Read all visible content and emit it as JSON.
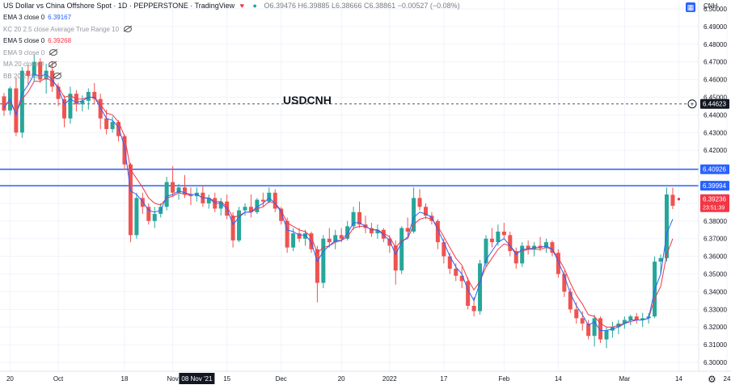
{
  "header": {
    "symbol_line": "US Dollar vs China Offshore Spot · 1D · PEPPERSTONE · TradingView",
    "ohlc": "O6.39476 H6.39885 L6.38666 C6.38861 −0.00527 (−0.08%)"
  },
  "indicators": [
    {
      "label": "EMA 3 close 0",
      "value": "6.39167",
      "color": "#2962ff",
      "faded": false
    },
    {
      "label": "KC 20 2.5 close Average True Range 10",
      "value": "",
      "color": "#787b86",
      "faded": true
    },
    {
      "label": "EMA 5 close 0",
      "value": "6.39268",
      "color": "#f23645",
      "faded": false
    },
    {
      "label": "EMA 9 close 0",
      "value": "",
      "color": "#787b86",
      "faded": true
    },
    {
      "label": "MA 20 close 0",
      "value": "",
      "color": "#787b86",
      "faded": true
    },
    {
      "label": "BB 20 2 close 0",
      "value": "",
      "color": "#787b86",
      "faded": true
    }
  ],
  "currency_label": "CNH",
  "chart_data": {
    "type": "candlestick",
    "title": "USDCNH",
    "ylim": [
      6.295,
      6.505
    ],
    "y_ticks": [
      "6.50000",
      "6.49000",
      "6.48000",
      "6.47000",
      "6.46000",
      "6.45000",
      "6.44000",
      "6.43000",
      "6.42000",
      "6.41000",
      "6.40000",
      "6.39000",
      "6.38000",
      "6.37000",
      "6.36000",
      "6.35000",
      "6.34000",
      "6.33000",
      "6.32000",
      "6.31000",
      "6.30000"
    ],
    "x_labels": [
      {
        "label": "20",
        "index": 1
      },
      {
        "label": "Oct",
        "index": 9
      },
      {
        "label": "18",
        "index": 20
      },
      {
        "label": "Nov",
        "index": 28
      },
      {
        "label": "08 Nov '21",
        "index": 32,
        "highlight": true
      },
      {
        "label": "15",
        "index": 37
      },
      {
        "label": "Dec",
        "index": 46
      },
      {
        "label": "20",
        "index": 56
      },
      {
        "label": "2022",
        "index": 64
      },
      {
        "label": "17",
        "index": 73
      },
      {
        "label": "Feb",
        "index": 83
      },
      {
        "label": "14",
        "index": 92
      },
      {
        "label": "Mar",
        "index": 103
      },
      {
        "label": "14",
        "index": 112
      },
      {
        "label": "24",
        "index": 120
      }
    ],
    "horizontal_lines": [
      {
        "value": 6.44623,
        "label": "6.44623",
        "style": "dashed",
        "color": "#555555",
        "badge": "#131722"
      },
      {
        "value": 6.40926,
        "label": "6.40926",
        "style": "solid",
        "color": "#2962ff",
        "badge": "#2962ff"
      },
      {
        "value": 6.39994,
        "label": "6.39994",
        "style": "solid",
        "color": "#2962ff",
        "badge": "#2962ff"
      }
    ],
    "last_price": {
      "value": 6.39236,
      "label": "6.39236",
      "countdown": "23:51:39",
      "color": "#f23645"
    },
    "candles": [
      [
        6.4505,
        6.4524,
        6.4395,
        6.4425
      ],
      [
        6.4425,
        6.456,
        6.44,
        6.455
      ],
      [
        6.455,
        6.461,
        6.428,
        6.43
      ],
      [
        6.43,
        6.467,
        6.427,
        6.465
      ],
      [
        6.465,
        6.468,
        6.457,
        6.462
      ],
      [
        6.462,
        6.474,
        6.459,
        6.47
      ],
      [
        6.47,
        6.472,
        6.458,
        6.46
      ],
      [
        6.46,
        6.469,
        6.452,
        6.465
      ],
      [
        6.465,
        6.47,
        6.453,
        6.456
      ],
      [
        6.456,
        6.458,
        6.445,
        6.449
      ],
      [
        6.449,
        6.451,
        6.433,
        6.438
      ],
      [
        6.438,
        6.456,
        6.435,
        6.452
      ],
      [
        6.452,
        6.454,
        6.442,
        6.446
      ],
      [
        6.446,
        6.451,
        6.442,
        6.448
      ],
      [
        6.448,
        6.455,
        6.443,
        6.453
      ],
      [
        6.453,
        6.458,
        6.446,
        6.449
      ],
      [
        6.449,
        6.452,
        6.432,
        6.438
      ],
      [
        6.438,
        6.443,
        6.429,
        6.432
      ],
      [
        6.432,
        6.439,
        6.43,
        6.436
      ],
      [
        6.436,
        6.437,
        6.425,
        6.428
      ],
      [
        6.428,
        6.429,
        6.409,
        6.412
      ],
      [
        6.412,
        6.413,
        6.368,
        6.372
      ],
      [
        6.372,
        6.396,
        6.37,
        6.393
      ],
      [
        6.393,
        6.396,
        6.384,
        6.388
      ],
      [
        6.388,
        6.39,
        6.378,
        6.38
      ],
      [
        6.38,
        6.388,
        6.376,
        6.384
      ],
      [
        6.384,
        6.39,
        6.382,
        6.388
      ],
      [
        6.388,
        6.405,
        6.386,
        6.402
      ],
      [
        6.402,
        6.411,
        6.394,
        6.396
      ],
      [
        6.396,
        6.401,
        6.392,
        6.399
      ],
      [
        6.399,
        6.406,
        6.393,
        6.395
      ],
      [
        6.395,
        6.399,
        6.389,
        6.394
      ],
      [
        6.394,
        6.399,
        6.391,
        6.396
      ],
      [
        6.396,
        6.4,
        6.388,
        6.39
      ],
      [
        6.39,
        6.395,
        6.387,
        6.393
      ],
      [
        6.393,
        6.396,
        6.385,
        6.387
      ],
      [
        6.387,
        6.393,
        6.383,
        6.391
      ],
      [
        6.391,
        6.395,
        6.381,
        6.383
      ],
      [
        6.383,
        6.385,
        6.365,
        6.369
      ],
      [
        6.369,
        6.388,
        6.368,
        6.386
      ],
      [
        6.386,
        6.39,
        6.383,
        6.388
      ],
      [
        6.388,
        6.395,
        6.382,
        6.385
      ],
      [
        6.385,
        6.393,
        6.384,
        6.392
      ],
      [
        6.392,
        6.396,
        6.388,
        6.391
      ],
      [
        6.391,
        6.399,
        6.39,
        6.396
      ],
      [
        6.396,
        6.398,
        6.385,
        6.387
      ],
      [
        6.387,
        6.388,
        6.378,
        6.38
      ],
      [
        6.38,
        6.382,
        6.362,
        6.365
      ],
      [
        6.365,
        6.376,
        6.363,
        6.373
      ],
      [
        6.373,
        6.376,
        6.368,
        6.37
      ],
      [
        6.37,
        6.375,
        6.366,
        6.373
      ],
      [
        6.373,
        6.374,
        6.362,
        6.364
      ],
      [
        6.364,
        6.366,
        6.334,
        6.345
      ],
      [
        6.345,
        6.372,
        6.342,
        6.37
      ],
      [
        6.37,
        6.376,
        6.365,
        6.368
      ],
      [
        6.368,
        6.375,
        6.364,
        6.372
      ],
      [
        6.372,
        6.376,
        6.368,
        6.37
      ],
      [
        6.37,
        6.38,
        6.369,
        6.377
      ],
      [
        6.377,
        6.388,
        6.375,
        6.385
      ],
      [
        6.385,
        6.391,
        6.376,
        6.378
      ],
      [
        6.378,
        6.383,
        6.373,
        6.376
      ],
      [
        6.376,
        6.379,
        6.371,
        6.373
      ],
      [
        6.373,
        6.378,
        6.37,
        6.375
      ],
      [
        6.375,
        6.376,
        6.368,
        6.37
      ],
      [
        6.37,
        6.372,
        6.362,
        6.366
      ],
      [
        6.366,
        6.369,
        6.344,
        6.352
      ],
      [
        6.352,
        6.377,
        6.35,
        6.376
      ],
      [
        6.376,
        6.382,
        6.372,
        6.374
      ],
      [
        6.374,
        6.399,
        6.373,
        6.393
      ],
      [
        6.393,
        6.398,
        6.386,
        6.388
      ],
      [
        6.388,
        6.39,
        6.381,
        6.383
      ],
      [
        6.383,
        6.385,
        6.378,
        6.38
      ],
      [
        6.38,
        6.381,
        6.364,
        6.368
      ],
      [
        6.368,
        6.37,
        6.356,
        6.36
      ],
      [
        6.36,
        6.362,
        6.35,
        6.353
      ],
      [
        6.353,
        6.356,
        6.346,
        6.349
      ],
      [
        6.349,
        6.354,
        6.342,
        6.346
      ],
      [
        6.346,
        6.348,
        6.33,
        6.332
      ],
      [
        6.332,
        6.337,
        6.326,
        6.329
      ],
      [
        6.329,
        6.358,
        6.327,
        6.356
      ],
      [
        6.356,
        6.372,
        6.354,
        6.37
      ],
      [
        6.37,
        6.376,
        6.365,
        6.368
      ],
      [
        6.368,
        6.378,
        6.366,
        6.374
      ],
      [
        6.374,
        6.379,
        6.37,
        6.372
      ],
      [
        6.372,
        6.374,
        6.36,
        6.363
      ],
      [
        6.363,
        6.365,
        6.353,
        6.356
      ],
      [
        6.356,
        6.368,
        6.354,
        6.366
      ],
      [
        6.366,
        6.369,
        6.361,
        6.364
      ],
      [
        6.364,
        6.368,
        6.36,
        6.366
      ],
      [
        6.366,
        6.371,
        6.363,
        6.365
      ],
      [
        6.365,
        6.37,
        6.362,
        6.368
      ],
      [
        6.368,
        6.369,
        6.36,
        6.362
      ],
      [
        6.362,
        6.364,
        6.348,
        6.35
      ],
      [
        6.35,
        6.352,
        6.337,
        6.34
      ],
      [
        6.34,
        6.342,
        6.328,
        6.33
      ],
      [
        6.33,
        6.334,
        6.322,
        6.325
      ],
      [
        6.325,
        6.329,
        6.318,
        6.322
      ],
      [
        6.322,
        6.324,
        6.313,
        6.315
      ],
      [
        6.315,
        6.327,
        6.309,
        6.325
      ],
      [
        6.325,
        6.326,
        6.311,
        6.313
      ],
      [
        6.313,
        6.32,
        6.308,
        6.318
      ],
      [
        6.318,
        6.323,
        6.314,
        6.32
      ],
      [
        6.32,
        6.324,
        6.316,
        6.322
      ],
      [
        6.322,
        6.326,
        6.319,
        6.324
      ],
      [
        6.324,
        6.327,
        6.321,
        6.326
      ],
      [
        6.326,
        6.328,
        6.322,
        6.324
      ],
      [
        6.324,
        6.328,
        6.32,
        6.325
      ],
      [
        6.325,
        6.328,
        6.322,
        6.326
      ],
      [
        6.326,
        6.36,
        6.325,
        6.357
      ],
      [
        6.357,
        6.361,
        6.35,
        6.359
      ],
      [
        6.359,
        6.399,
        6.357,
        6.395
      ],
      [
        6.3948,
        6.3989,
        6.3867,
        6.3886
      ]
    ],
    "ema3": [
      6.444,
      6.449,
      6.44,
      6.452,
      6.457,
      6.463,
      6.462,
      6.463,
      6.46,
      6.455,
      6.446,
      6.449,
      6.447,
      6.448,
      6.45,
      6.45,
      6.444,
      6.438,
      6.437,
      6.433,
      6.422,
      6.397,
      6.395,
      6.391,
      6.386,
      6.385,
      6.386,
      6.394,
      6.395,
      6.397,
      6.396,
      6.395,
      6.395,
      6.393,
      6.393,
      6.39,
      6.39,
      6.387,
      6.378,
      6.382,
      6.385,
      6.385,
      6.388,
      6.39,
      6.393,
      6.39,
      6.385,
      6.375,
      6.374,
      6.372,
      6.372,
      6.368,
      6.357,
      6.363,
      6.366,
      6.369,
      6.369,
      6.373,
      6.379,
      6.379,
      6.377,
      6.375,
      6.375,
      6.372,
      6.369,
      6.361,
      6.368,
      6.371,
      6.382,
      6.385,
      6.384,
      6.382,
      6.375,
      6.368,
      6.36,
      6.354,
      6.35,
      6.341,
      6.335,
      6.345,
      6.358,
      6.363,
      6.368,
      6.37,
      6.366,
      6.361,
      6.364,
      6.364,
      6.365,
      6.365,
      6.366,
      6.364,
      6.357,
      6.349,
      6.339,
      6.332,
      6.327,
      6.321,
      6.323,
      6.318,
      6.318,
      6.319,
      6.32,
      6.322,
      6.324,
      6.324,
      6.324,
      6.325,
      6.341,
      6.35,
      6.373,
      6.381
    ],
    "ema5": [
      6.446,
      6.447,
      6.441,
      6.449,
      6.453,
      6.459,
      6.459,
      6.461,
      6.459,
      6.456,
      6.45,
      6.451,
      6.449,
      6.449,
      6.45,
      6.45,
      6.446,
      6.441,
      6.44,
      6.436,
      6.428,
      6.409,
      6.404,
      6.399,
      6.393,
      6.39,
      6.389,
      6.393,
      6.394,
      6.396,
      6.395,
      6.395,
      6.395,
      6.393,
      6.393,
      6.391,
      6.391,
      6.388,
      6.382,
      6.383,
      6.385,
      6.385,
      6.387,
      6.388,
      6.391,
      6.39,
      6.386,
      6.379,
      6.377,
      6.375,
      6.374,
      6.371,
      6.362,
      6.365,
      6.366,
      6.368,
      6.369,
      6.371,
      6.376,
      6.377,
      6.377,
      6.375,
      6.375,
      6.373,
      6.371,
      6.365,
      6.369,
      6.37,
      6.378,
      6.381,
      6.382,
      6.381,
      6.377,
      6.371,
      6.365,
      6.359,
      6.355,
      6.347,
      6.341,
      6.346,
      6.354,
      6.359,
      6.364,
      6.367,
      6.366,
      6.362,
      6.363,
      6.364,
      6.364,
      6.364,
      6.365,
      6.364,
      6.359,
      6.353,
      6.345,
      6.338,
      6.333,
      6.327,
      6.326,
      6.322,
      6.32,
      6.32,
      6.321,
      6.322,
      6.323,
      6.324,
      6.324,
      6.325,
      6.336,
      6.343,
      6.361,
      6.37
    ]
  }
}
